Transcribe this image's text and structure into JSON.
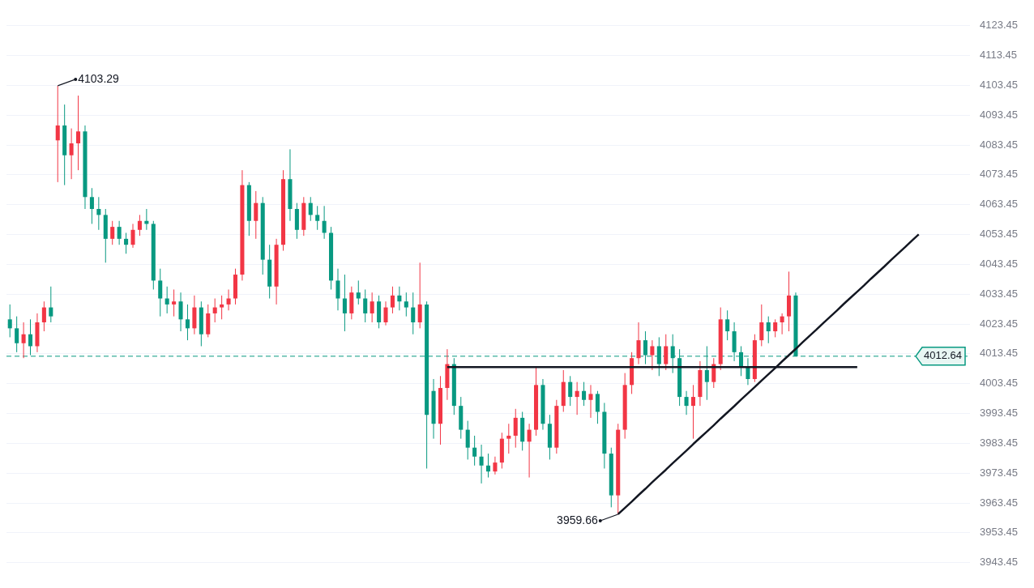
{
  "chart_data": {
    "type": "candlestick",
    "categories": [
      null,
      null,
      null,
      null,
      null,
      null,
      null,
      null,
      null,
      null,
      null,
      null,
      null,
      null,
      null,
      null,
      null,
      null,
      null,
      null,
      null,
      null,
      null,
      null,
      null,
      null,
      null,
      null,
      null,
      null,
      null,
      null,
      null,
      null,
      null,
      null,
      null,
      null,
      null,
      null,
      null,
      null,
      null,
      null,
      null,
      null,
      null,
      null,
      null,
      null,
      null,
      null,
      null,
      null,
      null,
      null,
      null,
      null,
      null,
      null,
      null,
      null,
      null,
      null,
      null,
      null,
      null,
      null,
      null,
      null,
      null,
      null,
      null,
      null,
      null,
      null,
      null,
      null,
      null,
      null,
      null,
      null,
      null,
      null,
      null,
      null,
      null,
      null,
      null,
      null,
      null,
      null,
      null,
      null,
      null,
      null,
      null,
      null,
      null,
      null,
      null,
      null,
      null,
      null,
      null,
      null,
      null,
      null,
      null,
      null,
      null,
      null,
      null,
      null,
      null,
      null,
      null,
      null,
      null,
      null,
      null,
      null,
      null,
      null,
      null,
      null,
      null,
      null,
      null,
      null,
      null,
      null,
      null,
      null,
      null,
      null,
      null,
      null,
      null,
      null,
      null
    ],
    "ohlc": [
      [
        4025,
        4030,
        4019,
        4022
      ],
      [
        4022,
        4026,
        4014,
        4017
      ],
      [
        4017,
        4024,
        4012,
        4020
      ],
      [
        4020,
        4025,
        4013,
        4016
      ],
      [
        4016,
        4027,
        4014,
        4024
      ],
      [
        4024,
        4031,
        4021,
        4029
      ],
      [
        4029,
        4036,
        4024,
        4026
      ],
      [
        4085,
        4103.29,
        4071,
        4090
      ],
      [
        4090,
        4097,
        4070,
        4080
      ],
      [
        4080,
        4089,
        4072,
        4084
      ],
      [
        4084,
        4100,
        4075,
        4088
      ],
      [
        4088,
        4090,
        4062,
        4066
      ],
      [
        4066,
        4069,
        4057,
        4062
      ],
      [
        4062,
        4066,
        4055,
        4060
      ],
      [
        4060,
        4062,
        4044,
        4052
      ],
      [
        4052,
        4058,
        4050,
        4056
      ],
      [
        4056,
        4058,
        4050,
        4052
      ],
      [
        4052,
        4054,
        4047,
        4050
      ],
      [
        4050,
        4057,
        4049,
        4055
      ],
      [
        4055,
        4060,
        4053,
        4058
      ],
      [
        4058,
        4062,
        4055,
        4057
      ],
      [
        4057,
        4058,
        4035,
        4038
      ],
      [
        4038,
        4042,
        4026,
        4032
      ],
      [
        4032,
        4036,
        4027,
        4030
      ],
      [
        4030,
        4035,
        4026,
        4031
      ],
      [
        4031,
        4034,
        4021,
        4025
      ],
      [
        4025,
        4030,
        4018,
        4022
      ],
      [
        4022,
        4033,
        4020,
        4029
      ],
      [
        4029,
        4031,
        4016,
        4020
      ],
      [
        4020,
        4030,
        4019,
        4027
      ],
      [
        4027,
        4032,
        4024,
        4029
      ],
      [
        4029,
        4033,
        4025,
        4030
      ],
      [
        4030,
        4035,
        4028,
        4032
      ],
      [
        4032,
        4042,
        4030,
        4040
      ],
      [
        4040,
        4075,
        4038,
        4070
      ],
      [
        4070,
        4071,
        4053,
        4058
      ],
      [
        4058,
        4068,
        4052,
        4064
      ],
      [
        4064,
        4066,
        4040,
        4045
      ],
      [
        4045,
        4050,
        4032,
        4036
      ],
      [
        4036,
        4052,
        4030,
        4050
      ],
      [
        4050,
        4075,
        4048,
        4072
      ],
      [
        4072,
        4082,
        4058,
        4062
      ],
      [
        4062,
        4064,
        4052,
        4055
      ],
      [
        4055,
        4066,
        4053,
        4064
      ],
      [
        4064,
        4066,
        4058,
        4060
      ],
      [
        4060,
        4063,
        4055,
        4058
      ],
      [
        4058,
        4063,
        4052,
        4054
      ],
      [
        4054,
        4056,
        4035,
        4038
      ],
      [
        4038,
        4042,
        4028,
        4032
      ],
      [
        4032,
        4040,
        4021,
        4027
      ],
      [
        4027,
        4036,
        4025,
        4034
      ],
      [
        4034,
        4038,
        4030,
        4032
      ],
      [
        4032,
        4035,
        4024,
        4027
      ],
      [
        4027,
        4034,
        4024,
        4031
      ],
      [
        4031,
        4033,
        4022,
        4024
      ],
      [
        4024,
        4031,
        4023,
        4029
      ],
      [
        4029,
        4036,
        4027,
        4033
      ],
      [
        4033,
        4036,
        4028,
        4031
      ],
      [
        4031,
        4034,
        4026,
        4029
      ],
      [
        4029,
        4034,
        4020,
        4024
      ],
      [
        4024,
        4044,
        4022,
        4030
      ],
      [
        4030,
        4031,
        3975,
        3993
      ],
      [
        4001,
        4005,
        3985,
        3990
      ],
      [
        3990,
        4006,
        3983,
        4002
      ],
      [
        4002,
        4015,
        3998,
        4010
      ],
      [
        4010,
        4012,
        3993,
        3996
      ],
      [
        3996,
        3999,
        3985,
        3988
      ],
      [
        3988,
        3991,
        3978,
        3982
      ],
      [
        3982,
        3986,
        3976,
        3979
      ],
      [
        3979,
        3983,
        3970,
        3976
      ],
      [
        3976,
        3980,
        3972,
        3974
      ],
      [
        3974,
        3979,
        3973,
        3977
      ],
      [
        3977,
        3987,
        3975,
        3985
      ],
      [
        3985,
        3990,
        3980,
        3986
      ],
      [
        3986,
        3995,
        3982,
        3992
      ],
      [
        3992,
        3994,
        3981,
        3984
      ],
      [
        3984,
        3990,
        3972,
        3988
      ],
      [
        3988,
        4009,
        3986,
        4003
      ],
      [
        4003,
        4005,
        3988,
        3990
      ],
      [
        3990,
        3993,
        3978,
        3982
      ],
      [
        3982,
        3998,
        3980,
        3996
      ],
      [
        3996,
        4008,
        3994,
        4004
      ],
      [
        4004,
        4006,
        3996,
        3999
      ],
      [
        3999,
        4004,
        3993,
        4001
      ],
      [
        4001,
        4004,
        3996,
        3998
      ],
      [
        3998,
        4003,
        3992,
        4000
      ],
      [
        4000,
        4001,
        3990,
        3994
      ],
      [
        3994,
        3997,
        3975,
        3980
      ],
      [
        3980,
        3982,
        3962,
        3966
      ],
      [
        3966,
        3990,
        3959.66,
        3988
      ],
      [
        3988,
        4007,
        3985,
        4003
      ],
      [
        4003,
        4014,
        4000,
        4012
      ],
      [
        4012,
        4024,
        4010,
        4018
      ],
      [
        4018,
        4021,
        4010,
        4013
      ],
      [
        4013,
        4018,
        4008,
        4016
      ],
      [
        4016,
        4019,
        4006,
        4010
      ],
      [
        4010,
        4020,
        4008,
        4016
      ],
      [
        4016,
        4020,
        4007,
        4012
      ],
      [
        4012,
        4015,
        3996,
        3999
      ],
      [
        3999,
        4001,
        3993,
        3996
      ],
      [
        3996,
        4003,
        3985,
        3999
      ],
      [
        3999,
        4011,
        3996,
        4008
      ],
      [
        4008,
        4016,
        3998,
        4004
      ],
      [
        4004,
        4012,
        4002,
        4010
      ],
      [
        4010,
        4029,
        4008,
        4025
      ],
      [
        4025,
        4028,
        4018,
        4021
      ],
      [
        4021,
        4024,
        4011,
        4014
      ],
      [
        4014,
        4016,
        4006,
        4009
      ],
      [
        4009,
        4012,
        4003,
        4005
      ],
      [
        4005,
        4020,
        4004,
        4018
      ],
      [
        4018,
        4030,
        4016,
        4024
      ],
      [
        4024,
        4026,
        4017,
        4021
      ],
      [
        4021,
        4025,
        4019,
        4024
      ],
      [
        4024,
        4027,
        4020,
        4026
      ],
      [
        4026,
        4041,
        4021,
        4033
      ],
      [
        4033,
        4034,
        4012.64,
        4012.64
      ],
      null,
      null,
      null,
      null,
      null,
      null,
      null,
      null,
      null,
      null,
      null,
      null,
      null,
      null,
      null,
      null,
      null,
      null,
      null,
      null,
      null,
      null,
      null,
      null,
      null
    ],
    "colors": [
      "#089981",
      "#089981",
      "#f23645",
      "#089981",
      "#f23645",
      "#f23645",
      "#089981",
      "#f23645",
      "#089981",
      "#f23645",
      "#f23645",
      "#089981",
      "#089981",
      "#089981",
      "#089981",
      "#f23645",
      "#089981",
      "#089981",
      "#f23645",
      "#f23645",
      "#089981",
      "#089981",
      "#089981",
      "#089981",
      "#f23645",
      "#089981",
      "#089981",
      "#f23645",
      "#089981",
      "#f23645",
      "#f23645",
      "#f23645",
      "#f23645",
      "#f23645",
      "#f23645",
      "#089981",
      "#f23645",
      "#089981",
      "#089981",
      "#f23645",
      "#f23645",
      "#089981",
      "#089981",
      "#f23645",
      "#089981",
      "#089981",
      "#089981",
      "#089981",
      "#089981",
      "#089981",
      "#f23645",
      "#089981",
      "#089981",
      "#f23645",
      "#089981",
      "#f23645",
      "#f23645",
      "#089981",
      "#089981",
      "#089981",
      "#f23645",
      "#089981",
      "#089981",
      "#f23645",
      "#f23645",
      "#089981",
      "#089981",
      "#089981",
      "#089981",
      "#089981",
      "#089981",
      "#f23645",
      "#f23645",
      "#f23645",
      "#f23645",
      "#089981",
      "#f23645",
      "#f23645",
      "#089981",
      "#089981",
      "#f23645",
      "#f23645",
      "#089981",
      "#f23645",
      "#089981",
      "#f23645",
      "#089981",
      "#089981",
      "#089981",
      "#f23645",
      "#f23645",
      "#f23645",
      "#f23645",
      "#089981",
      "#f23645",
      "#089981",
      "#f23645",
      "#089981",
      "#089981",
      "#089981",
      "#f23645",
      "#f23645",
      "#089981",
      "#f23645",
      "#f23645",
      "#089981",
      "#089981",
      "#089981",
      "#089981",
      "#f23645",
      "#f23645",
      "#089981",
      "#f23645",
      "#f23645",
      "#f23645",
      "#089981",
      null,
      null,
      null,
      null,
      null,
      null,
      null,
      null,
      null,
      null,
      null,
      null,
      null,
      null,
      null,
      null,
      null,
      null,
      null,
      null,
      null,
      null,
      null,
      null,
      null
    ],
    "series": [
      {
        "type": "line",
        "color": "#131722",
        "values": [
          null,
          null,
          null,
          null,
          null,
          null,
          null,
          null,
          null,
          null,
          null,
          null,
          null,
          null,
          null,
          null,
          null,
          null,
          null,
          null,
          null,
          null,
          null,
          null,
          null,
          null,
          null,
          null,
          null,
          null,
          null,
          null,
          null,
          null,
          null,
          null,
          null,
          null,
          null,
          null,
          null,
          null,
          null,
          null,
          null,
          null,
          null,
          null,
          null,
          null,
          null,
          null,
          null,
          null,
          null,
          null,
          null,
          null,
          null,
          null,
          null,
          null,
          null,
          null,
          4009,
          4009,
          4009,
          4009,
          4009,
          4009,
          4009,
          4009,
          4009,
          4009,
          4009,
          4009,
          4009,
          4009,
          4009,
          4009,
          4009,
          4009,
          4009,
          4009,
          4009,
          4009,
          4009,
          4009,
          4009,
          4009,
          4009,
          4009,
          4009,
          4009,
          4009,
          4009,
          4009,
          4009,
          4009,
          4009,
          4009,
          4009,
          4009,
          4009,
          4009,
          4009,
          4009,
          4009,
          4009,
          4009,
          4009,
          4009,
          4009,
          4009,
          4009,
          4009,
          4009,
          4009,
          4009,
          4009,
          4009,
          4009,
          4009,
          4009,
          4009,
          null,
          null,
          null,
          null,
          null,
          null,
          null,
          null,
          null,
          null,
          null,
          null,
          null,
          null,
          null,
          null
        ]
      },
      {
        "type": "line",
        "color": "#131722",
        "values": [
          null,
          null,
          null,
          null,
          null,
          null,
          null,
          null,
          null,
          null,
          null,
          null,
          null,
          null,
          null,
          null,
          null,
          null,
          null,
          null,
          null,
          null,
          null,
          null,
          null,
          null,
          null,
          null,
          null,
          null,
          null,
          null,
          null,
          null,
          null,
          null,
          null,
          null,
          null,
          null,
          null,
          null,
          null,
          null,
          null,
          null,
          null,
          null,
          null,
          null,
          null,
          null,
          null,
          null,
          null,
          null,
          null,
          null,
          null,
          null,
          null,
          null,
          null,
          null,
          null,
          null,
          null,
          null,
          null,
          null,
          null,
          null,
          null,
          null,
          null,
          null,
          null,
          null,
          null,
          null,
          null,
          null,
          null,
          null,
          null,
          null,
          null,
          null,
          null,
          3959.7,
          3961.8,
          3963.9,
          3966.1,
          3968.2,
          3970.4,
          3972.5,
          3974.6,
          3976.8,
          3978.9,
          3981.0,
          3983.2,
          3985.3,
          3987.4,
          3989.5,
          3991.7,
          3993.8,
          3995.9,
          3998.1,
          4000.2,
          4002.3,
          4004.5,
          4006.6,
          4008.7,
          4010.9,
          4013.0,
          4015.1,
          4017.3,
          4019.4,
          4021.5,
          4023.7,
          4025.8,
          4027.9,
          4030.1,
          4032.2,
          4034.3,
          4036.4,
          4038.6,
          4040.7,
          4042.8,
          4045.0,
          4047.1,
          4049.2,
          4051.4,
          4053.5,
          null,
          null,
          null,
          null,
          null,
          null,
          null
        ]
      }
    ],
    "ylim": [
      3942.5,
      4124.5
    ],
    "yticks": [
      3943.45,
      3953.45,
      3963.45,
      3973.45,
      3983.45,
      3993.45,
      4003.45,
      4013.45,
      4023.45,
      4033.45,
      4043.45,
      4053.45,
      4063.45,
      4073.45,
      4083.45,
      4093.45,
      4103.45,
      4113.45,
      4123.45
    ],
    "tick_labels": "y",
    "grid": "y",
    "legend": false,
    "marker": "none",
    "line_style": "solid",
    "ref_lines": [
      {
        "axis": "y",
        "value": 4012.64,
        "label": "4012.64",
        "color": "#089981",
        "line_style": "dashed"
      }
    ],
    "annotations": [
      "4103.29",
      "3959.66"
    ]
  }
}
